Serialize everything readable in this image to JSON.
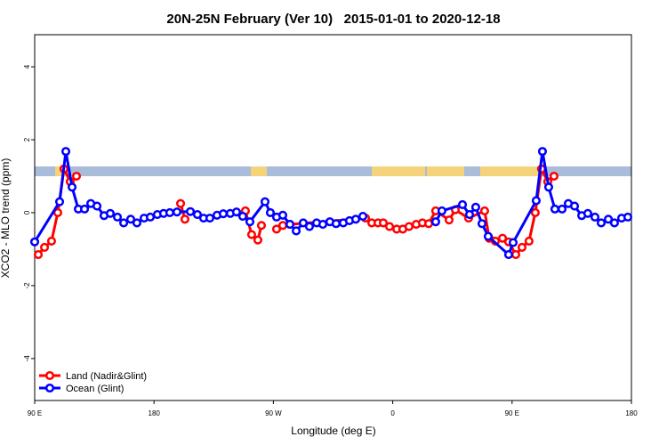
{
  "chart_data": {
    "type": "line",
    "title": "20N-25N February (Ver 10)   2015-01-01 to 2020-12-18",
    "x_label": "Longitude (deg E)",
    "y_label": "XCO2 - MLO trend (ppm)",
    "xlim": [
      90,
      540
    ],
    "ylim": [
      -5.15,
      4.88
    ],
    "xticks": [
      {
        "value": 90,
        "label": "90 E"
      },
      180,
      {
        "value": 270,
        "label": "90 W"
      },
      {
        "value": 360,
        "label": "0"
      },
      {
        "value": 450,
        "label": "90 E"
      },
      {
        "value": 540,
        "label": "180"
      }
    ],
    "yticks": [
      -4,
      -2,
      0,
      2,
      4
    ],
    "legend": "bottom-left",
    "series": [
      {
        "name": "Land (Nadir&Glint)",
        "color": "#ff0000",
        "x": [
          92.7,
          97.4,
          102.7,
          107.4,
          112.1,
          116.8,
          121.5,
          null,
          200.0,
          203.3,
          null,
          248.9,
          253.6,
          258.3,
          261.0,
          null,
          272.4,
          277.1,
          282.5,
          339.5,
          344.2,
          348.9,
          352.9,
          357.6,
          363.0,
          367.6,
          372.3,
          377.7,
          382.4,
          387.1,
          392.4,
          402.5,
          407.2,
          417.2,
          429.3,
          432.7,
          437.4,
          442.8,
          447.4,
          452.8,
          457.5,
          462.8,
          467.5,
          472.2,
          476.9,
          481.6
        ],
        "values": [
          -1.15,
          -0.95,
          -0.78,
          0.0,
          1.2,
          0.85,
          1.0,
          null,
          0.25,
          -0.18,
          null,
          0.05,
          -0.6,
          -0.75,
          -0.35,
          null,
          -0.45,
          -0.35,
          -0.32,
          -0.15,
          -0.28,
          -0.28,
          -0.28,
          -0.38,
          -0.45,
          -0.45,
          -0.38,
          -0.32,
          -0.28,
          -0.3,
          0.05,
          -0.2,
          0.08,
          -0.15,
          0.05,
          -0.7,
          -0.78,
          -0.7,
          -0.8,
          -1.15,
          -0.95,
          -0.78,
          0.0,
          1.2,
          0.85,
          1.0
        ]
      },
      {
        "name": "Ocean (Glint)",
        "color": "#0000ff",
        "x": [
          90,
          108.8,
          113.5,
          118.2,
          122.9,
          127.6,
          132.3,
          137.0,
          142.3,
          147.0,
          152.4,
          157.1,
          162.4,
          167.1,
          172.5,
          177.2,
          182.5,
          187.2,
          191.9,
          197.3,
          207.4,
          212.7,
          217.4,
          222.1,
          227.5,
          232.2,
          237.5,
          242.2,
          246.9,
          252.3,
          263.7,
          267.7,
          272.4,
          277.1,
          282.5,
          287.2,
          292.5,
          297.2,
          302.6,
          307.3,
          312.6,
          317.3,
          322.7,
          327.4,
          332.1,
          337.5,
          null,
          392.4,
          397.1,
          412.6,
          417.9,
          422.6,
          427.3,
          432.0,
          447.4,
          450.8,
          468.2,
          472.9,
          477.6,
          482.3,
          487.7,
          492.4,
          497.1,
          502.5,
          507.1,
          512.5,
          517.2,
          522.6,
          527.2,
          532.6,
          537.3
        ],
        "values": [
          -0.8,
          0.3,
          1.68,
          0.7,
          0.1,
          0.1,
          0.25,
          0.18,
          -0.08,
          -0.02,
          -0.12,
          -0.28,
          -0.18,
          -0.28,
          -0.15,
          -0.12,
          -0.05,
          -0.02,
          0.0,
          0.02,
          0.03,
          -0.05,
          -0.15,
          -0.15,
          -0.07,
          -0.03,
          -0.02,
          0.02,
          -0.1,
          -0.25,
          0.3,
          0.0,
          -0.12,
          -0.07,
          -0.32,
          -0.5,
          -0.28,
          -0.38,
          -0.28,
          -0.32,
          -0.25,
          -0.3,
          -0.28,
          -0.22,
          -0.18,
          -0.1,
          null,
          -0.25,
          0.05,
          0.22,
          -0.05,
          0.15,
          -0.3,
          -0.65,
          -1.15,
          -0.82,
          0.33,
          1.68,
          0.7,
          0.1,
          0.1,
          0.25,
          0.18,
          -0.08,
          -0.02,
          -0.12,
          -0.28,
          -0.18,
          -0.28,
          -0.15,
          -0.12
        ]
      }
    ]
  }
}
